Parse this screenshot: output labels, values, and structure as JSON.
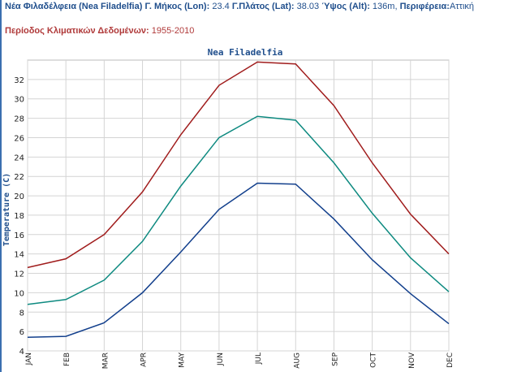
{
  "header": {
    "location": "Νέα Φιλαδέλφεια (Nea Filadelfia)",
    "lon_label": "Γ. Μήκος (Lon):",
    "lon": "23.4",
    "lat_label": "Γ.Πλάτος (Lat):",
    "lat": "38.03",
    "alt_label": "Ύψος (Alt):",
    "alt": "136m,",
    "region_label": "Περιφέρεια:",
    "region": "Αττική",
    "period_label": "Περίοδος Κλιματικών Δεδομένων:",
    "period": "1955-2010"
  },
  "chart_data": {
    "type": "line",
    "title": "Nea Filadelfia",
    "y_label": "Temperature (C)",
    "categories": [
      "JAN",
      "FEB",
      "MAR",
      "APR",
      "MAY",
      "JUN",
      "JUL",
      "AUG",
      "SEP",
      "OCT",
      "NOV",
      "DEC"
    ],
    "series": [
      {
        "color": "#a01c1c",
        "values": [
          12.6,
          13.5,
          16.0,
          20.4,
          26.3,
          31.4,
          33.8,
          33.6,
          29.3,
          23.4,
          18.1,
          14.0
        ]
      },
      {
        "color": "#0e8a80",
        "values": [
          8.8,
          9.3,
          11.3,
          15.3,
          21.0,
          26.0,
          28.2,
          27.8,
          23.4,
          18.2,
          13.6,
          10.1
        ]
      },
      {
        "color": "#123f8c",
        "values": [
          5.4,
          5.5,
          6.9,
          10.0,
          14.2,
          18.6,
          21.3,
          21.2,
          17.6,
          13.4,
          9.9,
          6.8
        ]
      }
    ],
    "ylim": [
      4,
      34
    ],
    "yticks": [
      4,
      6,
      8,
      10,
      12,
      14,
      16,
      18,
      20,
      22,
      24,
      26,
      28,
      30,
      32
    ],
    "grid": true
  }
}
